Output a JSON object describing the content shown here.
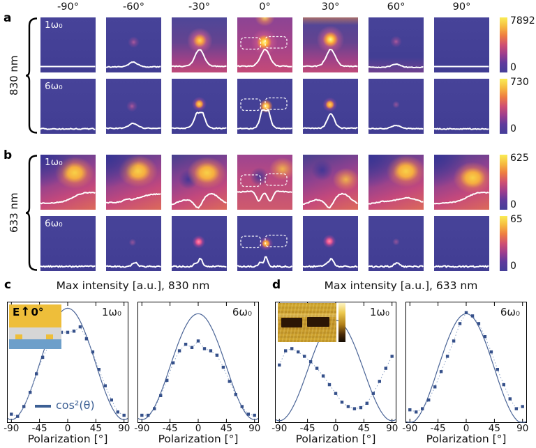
{
  "colors": {
    "curve": "#4a6496",
    "marker": "#35508a",
    "dotted": "#8aa0c4",
    "legend": "#3c5f94",
    "profile_line": "#ffffff",
    "cbar_gradient": [
      "#f9ec55",
      "#f6b93f",
      "#ee7d41",
      "#cf4f72",
      "#9c3d8e",
      "#5f3a9c",
      "#443e99"
    ],
    "inset_gold": "#eebe3a",
    "inset_gray": "#d6d6d6",
    "inset_blue": "#6d9fca"
  },
  "heatmaps": {
    "angles": [
      "-90°",
      "-60°",
      "-30°",
      "0°",
      "30°",
      "60°",
      "90°"
    ],
    "panels": [
      {
        "letter": "a",
        "wavelength": "830 nm",
        "rows": [
          {
            "mode": "1ω₀",
            "cbar_max": "7892",
            "cbar_min": "0",
            "tiles": [
              {
                "bg": "cool",
                "layers": [],
                "profile": "flat",
                "outline": false
              },
              {
                "bg": "cool",
                "layers": [
                  [
                    "faint",
                    50,
                    45
                  ]
                ],
                "profile": "bump",
                "outline": false
              },
              {
                "bg": "warm",
                "layers": [
                  [
                    "orange",
                    51,
                    42
                  ]
                ],
                "profile": "peak",
                "outline": false
              },
              {
                "bg": "hot",
                "layers": [
                  [
                    "topglow",
                    50
                  ],
                  [
                    "yellow",
                    49,
                    45
                  ]
                ],
                "profile": "peak",
                "outline": true
              },
              {
                "bg": "warm",
                "layers": [
                  [
                    "topband",
                    50
                  ],
                  [
                    "yellow",
                    50,
                    40
                  ]
                ],
                "profile": "peak",
                "outline": false
              },
              {
                "bg": "cool2",
                "layers": [
                  [
                    "faint",
                    50,
                    44
                  ]
                ],
                "profile": "bumpS",
                "outline": false
              },
              {
                "bg": "cool",
                "layers": [],
                "profile": "flat",
                "outline": false
              }
            ]
          },
          {
            "mode": "6ω₀",
            "cbar_max": "730",
            "cbar_min": "0",
            "tiles": [
              {
                "bg": "cool",
                "layers": [],
                "profile": "flatn",
                "outline": false
              },
              {
                "bg": "cool",
                "layers": [
                  [
                    "faint",
                    47,
                    50
                  ]
                ],
                "profile": "bump",
                "outline": false
              },
              {
                "bg": "cool",
                "layers": [
                  [
                    "orangeS",
                    50,
                    46
                  ]
                ],
                "profile": "boxpeak",
                "outline": false
              },
              {
                "bg": "cool",
                "layers": [
                  [
                    "yellowS",
                    52,
                    50
                  ]
                ],
                "profile": "tallbox",
                "outline": true
              },
              {
                "bg": "cool",
                "layers": [
                  [
                    "orangeS",
                    49,
                    47
                  ]
                ],
                "profile": "peakS",
                "outline": false
              },
              {
                "bg": "cool",
                "layers": [
                  [
                    "faintS",
                    50,
                    47
                  ]
                ],
                "profile": "bumpS",
                "outline": false
              },
              {
                "bg": "cool",
                "layers": [],
                "profile": "flatn",
                "outline": false
              }
            ]
          }
        ]
      },
      {
        "letter": "b",
        "wavelength": "633 nm",
        "rows": [
          {
            "mode": "1ω₀",
            "cbar_max": "625",
            "cbar_min": "0",
            "tiles": [
              {
                "bg": "rich",
                "layers": [
                  [
                    "darkcorner"
                  ],
                  [
                    "blob",
                    62,
                    33
                  ]
                ],
                "profile": "rise",
                "outline": false
              },
              {
                "bg": "rich",
                "layers": [
                  [
                    "darkcorner"
                  ],
                  [
                    "blob",
                    58,
                    30
                  ]
                ],
                "profile": "rise2",
                "outline": false
              },
              {
                "bg": "rich",
                "layers": [
                  [
                    "blob",
                    64,
                    33
                  ],
                  [
                    "darkdot",
                    30,
                    45
                  ]
                ],
                "profile": "hilldip",
                "outline": false
              },
              {
                "bg": "rich2",
                "layers": [
                  [
                    "blobS",
                    82,
                    26
                  ],
                  [
                    "darkdot",
                    40,
                    40
                  ]
                ],
                "profile": "wdip",
                "outline": true
              },
              {
                "bg": "rich",
                "layers": [
                  [
                    "darkdot",
                    35,
                    28
                  ],
                  [
                    "blobS",
                    78,
                    45
                  ]
                ],
                "profile": "hilldip",
                "outline": false
              },
              {
                "bg": "rich",
                "layers": [
                  [
                    "darkcorner"
                  ],
                  [
                    "blob",
                    68,
                    30
                  ]
                ],
                "profile": "hillgentle",
                "outline": false
              },
              {
                "bg": "rich",
                "layers": [
                  [
                    "darkcorner"
                  ],
                  [
                    "blob",
                    70,
                    42
                  ]
                ],
                "profile": "rise",
                "outline": false
              }
            ]
          },
          {
            "mode": "6ω₀",
            "cbar_max": "65",
            "cbar_min": "0",
            "tiles": [
              {
                "bg": "cool",
                "layers": [],
                "profile": "noisy",
                "outline": false
              },
              {
                "bg": "cool",
                "layers": [
                  [
                    "faintS",
                    48,
                    48
                  ]
                ],
                "profile": "spikeS",
                "outline": false
              },
              {
                "bg": "cool",
                "layers": [
                  [
                    "pink",
                    49,
                    47
                  ]
                ],
                "profile": "spike",
                "outline": false
              },
              {
                "bg": "cool",
                "layers": [
                  [
                    "orangeS",
                    52,
                    50
                  ]
                ],
                "profile": "spikeD",
                "outline": true
              },
              {
                "bg": "cool",
                "layers": [
                  [
                    "pink",
                    48,
                    46
                  ]
                ],
                "profile": "spike",
                "outline": false
              },
              {
                "bg": "cool",
                "layers": [
                  [
                    "faintS",
                    50,
                    47
                  ]
                ],
                "profile": "spikeS",
                "outline": false
              },
              {
                "bg": "cool",
                "layers": [],
                "profile": "noisy",
                "outline": false
              }
            ]
          }
        ]
      }
    ]
  },
  "plots_section": {
    "letter_c": "c",
    "letter_d": "d",
    "inset_c": {
      "e_label": "E",
      "angle_label": "0°"
    }
  },
  "chart_data": [
    {
      "panel": "c",
      "type": "scatter",
      "title": "Max intensity [a.u.], 830 nm",
      "annotation": "1ω₀",
      "xlabel": "Polarization [°]",
      "xticks": [
        -90,
        -45,
        0,
        45,
        90
      ],
      "xlim": [
        -97,
        97
      ],
      "ylim": [
        -0.05,
        1.06
      ],
      "x": [
        -90,
        -80,
        -70,
        -60,
        -50,
        -40,
        -30,
        -20,
        -10,
        0,
        10,
        20,
        30,
        40,
        50,
        60,
        70,
        80,
        90
      ],
      "measured": [
        0.03,
        0.01,
        0.1,
        0.23,
        0.4,
        0.55,
        0.66,
        0.76,
        0.78,
        0.78,
        0.79,
        0.83,
        0.72,
        0.6,
        0.44,
        0.29,
        0.16,
        0.05,
        0.02
      ],
      "fit": {
        "label": "cos²(θ)",
        "type": "cos2",
        "amplitude": 1.02,
        "offset": -0.02
      },
      "legend": true,
      "inset": "schematic"
    },
    {
      "panel": "c",
      "type": "scatter",
      "title": "Max intensity [a.u.], 830 nm",
      "annotation": "6ω₀",
      "xlabel": "Polarization [°]",
      "xticks": [
        -90,
        -45,
        0,
        45,
        90
      ],
      "xlim": [
        -97,
        97
      ],
      "ylim": [
        -0.05,
        1.06
      ],
      "x": [
        -90,
        -80,
        -70,
        -60,
        -50,
        -40,
        -30,
        -20,
        -10,
        0,
        10,
        20,
        30,
        40,
        50,
        60,
        70,
        80,
        90
      ],
      "measured": [
        0.02,
        0.02,
        0.08,
        0.2,
        0.34,
        0.5,
        0.61,
        0.67,
        0.64,
        0.7,
        0.63,
        0.61,
        0.57,
        0.46,
        0.33,
        0.21,
        0.1,
        0.03,
        0.02
      ],
      "fit": {
        "label": "cos²(θ)",
        "type": "cos2",
        "amplitude": 0.97,
        "offset": -0.02
      },
      "legend": false,
      "inset": null
    },
    {
      "panel": "d",
      "type": "scatter",
      "title": "Max intensity [a.u.], 633 nm",
      "annotation": "1ω₀",
      "xlabel": "Polarization [°]",
      "xticks": [
        -90,
        -45,
        0,
        45,
        90
      ],
      "xlim": [
        -97,
        97
      ],
      "ylim": [
        -0.05,
        1.06
      ],
      "x": [
        -90,
        -80,
        -70,
        -60,
        -50,
        -40,
        -30,
        -20,
        -10,
        0,
        10,
        20,
        30,
        40,
        50,
        60,
        70,
        80,
        90
      ],
      "measured": [
        0.48,
        0.61,
        0.63,
        0.6,
        0.56,
        0.51,
        0.45,
        0.38,
        0.3,
        0.22,
        0.14,
        0.1,
        0.08,
        0.09,
        0.13,
        0.22,
        0.33,
        0.45,
        0.56
      ],
      "fit": {
        "label": "cos²(θ)",
        "type": "cos2",
        "amplitude": 0.92,
        "offset": -0.03
      },
      "legend": false,
      "inset": "afm"
    },
    {
      "panel": "d",
      "type": "scatter",
      "title": "Max intensity [a.u.], 633 nm",
      "annotation": "6ω₀",
      "xlabel": "Polarization [°]",
      "xticks": [
        -90,
        -45,
        0,
        45,
        90
      ],
      "xlim": [
        -97,
        97
      ],
      "ylim": [
        -0.05,
        1.06
      ],
      "x": [
        -90,
        -80,
        -70,
        -60,
        -50,
        -40,
        -30,
        -20,
        -10,
        0,
        10,
        20,
        30,
        40,
        50,
        60,
        70,
        80,
        90
      ],
      "measured": [
        0.07,
        0.05,
        0.08,
        0.16,
        0.28,
        0.42,
        0.56,
        0.7,
        0.86,
        0.96,
        0.93,
        0.86,
        0.74,
        0.6,
        0.44,
        0.3,
        0.17,
        0.08,
        0.1
      ],
      "fit": {
        "label": "cos²(θ)",
        "type": "cos2",
        "amplitude": 1.0,
        "offset": -0.05
      },
      "legend": false,
      "inset": null
    }
  ]
}
